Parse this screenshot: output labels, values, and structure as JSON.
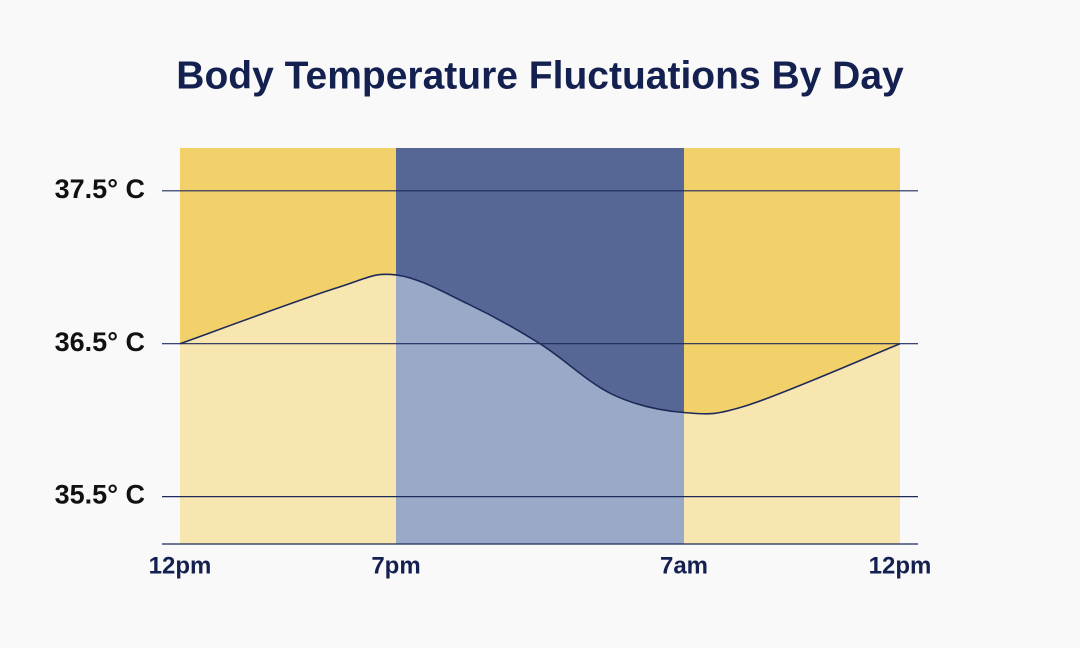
{
  "chart_data": {
    "type": "area",
    "title": "Body Temperature Fluctuations By Day",
    "x": [
      0,
      5,
      7,
      10,
      13,
      16,
      19,
      20.5,
      24
    ],
    "series": [
      {
        "name": "Body temperature",
        "color": "#1e2a5a",
        "values": [
          36.5,
          36.86,
          36.95,
          36.76,
          36.5,
          36.17,
          36.05,
          36.1,
          36.5
        ]
      }
    ],
    "bands": [
      {
        "start": 0,
        "end": 7,
        "upper_color": "#f2d16b",
        "lower_color": "#f8e6b1"
      },
      {
        "start": 7,
        "end": 19,
        "upper_color": "#566796",
        "lower_color": "#9aa9c8"
      },
      {
        "start": 19,
        "end": 24,
        "upper_color": "#f2d16b",
        "lower_color": "#f8e6b1"
      }
    ],
    "xlim": [
      0,
      24
    ],
    "xticks": [
      {
        "value": 0,
        "label": "12pm"
      },
      {
        "value": 7,
        "label": "7pm"
      },
      {
        "value": 19,
        "label": "7am"
      },
      {
        "value": 24,
        "label": "12pm"
      }
    ],
    "ylim": [
      35.19,
      37.78
    ],
    "yticks": [
      {
        "value": 35.5,
        "label": "35.5° C"
      },
      {
        "value": 36.5,
        "label": "36.5° C"
      },
      {
        "value": 37.5,
        "label": "37.5° C"
      }
    ],
    "grid": true,
    "grid_color": "#1e2a5a"
  }
}
